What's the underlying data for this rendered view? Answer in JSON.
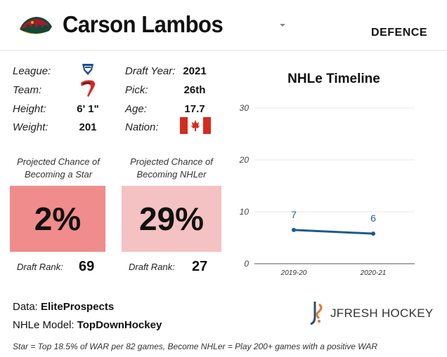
{
  "header": {
    "player_name": "Carson Lambos",
    "position": "DEFENCE",
    "team_logo_icon": "minnesota-wild-logo-icon"
  },
  "bio": {
    "league_label": "League:",
    "league_icon": "whl-league-icon",
    "team_label": "Team:",
    "team_icon": "winnipeg-ice-team-icon",
    "height_label": "Height:",
    "height": "6' 1\"",
    "weight_label": "Weight:",
    "weight": "201",
    "draft_year_label": "Draft Year:",
    "draft_year": "2021",
    "pick_label": "Pick:",
    "pick": "26th",
    "age_label": "Age:",
    "age": "17.7",
    "nation_label": "Nation:",
    "nation_icon": "canada-flag-icon"
  },
  "projections": {
    "star": {
      "title_line1": "Projected Chance of",
      "title_line2": "Becoming a Star",
      "value": "2%",
      "rank_label": "Draft Rank:",
      "rank": "69",
      "color": "#f08c8c"
    },
    "nhler": {
      "title_line1": "Projected Chance of",
      "title_line2": "Becoming NHLer",
      "value": "29%",
      "rank_label": "Draft Rank:",
      "rank": "27",
      "color": "#f4c2c2"
    }
  },
  "chart_data": {
    "type": "line",
    "title": "NHLe Timeline",
    "categories": [
      "2019-20",
      "2020-21"
    ],
    "series": [
      {
        "values": [
          6.5,
          5.8
        ],
        "labels": [
          "7",
          "6"
        ],
        "color": "#1f5a8c"
      }
    ],
    "yticks": [
      0,
      10,
      20,
      30
    ],
    "ylim": [
      0,
      30
    ],
    "grid": true
  },
  "footer": {
    "data_label": "Data:",
    "data_source": "EliteProspects",
    "model_label": "NHLe Model:",
    "model_source": "TopDownHockey",
    "brand": "JFRESH HOCKEY",
    "footnote": "Star = Top 18.5% of WAR per 82 games, Become NHLer = Play 200+ games with a positive WAR"
  }
}
